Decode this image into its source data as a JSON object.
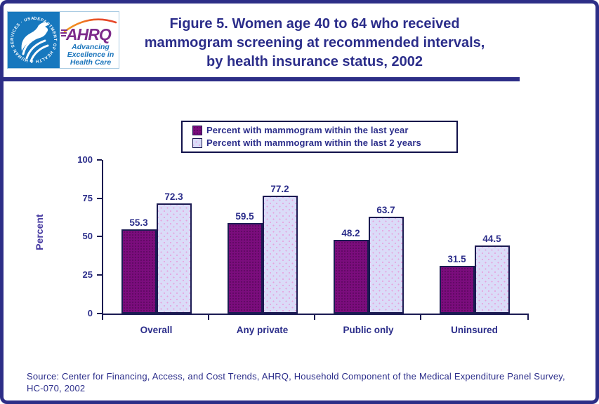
{
  "header": {
    "title_lines": [
      "Figure 5. Women age 40 to 64 who received",
      "mammogram screening at recommended intervals,",
      "by health insurance status, 2002"
    ],
    "logo": {
      "hhs_ring_text": "DEPARTMENT OF HEALTH & HUMAN SERVICES · USA",
      "ahrq_acronym": "AHRQ",
      "tagline_lines": [
        "Advancing",
        "Excellence in",
        "Health Care"
      ]
    }
  },
  "chart_data": {
    "type": "bar",
    "title": "Figure 5. Women age 40 to 64 who received mammogram screening at recommended intervals, by health insurance status, 2002",
    "categories": [
      "Overall",
      "Any private",
      "Public only",
      "Uninsured"
    ],
    "series": [
      {
        "name": "Percent with mammogram within the last year",
        "color": "#7b0d7d",
        "values": [
          55.3,
          59.5,
          48.2,
          31.5
        ]
      },
      {
        "name": "Percent with mammogram within the last 2 years",
        "color": "#dadcf8",
        "values": [
          72.3,
          77.2,
          63.7,
          44.5
        ]
      }
    ],
    "xlabel": "",
    "ylabel": "Percent",
    "yticks": [
      0,
      25,
      50,
      75,
      100
    ],
    "ylim": [
      0,
      100
    ],
    "legend_position": "top",
    "grid": false,
    "value_labels_shown": true
  },
  "source": {
    "line1": "Source: Center for Financing, Access, and Cost Trends, AHRQ, Household Component of the Medical Expenditure Panel Survey,",
    "line2": "HC-070, 2002"
  },
  "colors": {
    "page_border": "#2d2e87",
    "title_text": "#2b2d8a",
    "axis_and_outline": "#1b1b52",
    "ylabel_text": "#463aa1",
    "series1_fill": "#7b0d7d",
    "series2_fill": "#dadcf8",
    "hhs_blue": "#1778be",
    "ahrq_purple": "#7d2b8b",
    "tagline_blue": "#1b75bc"
  }
}
